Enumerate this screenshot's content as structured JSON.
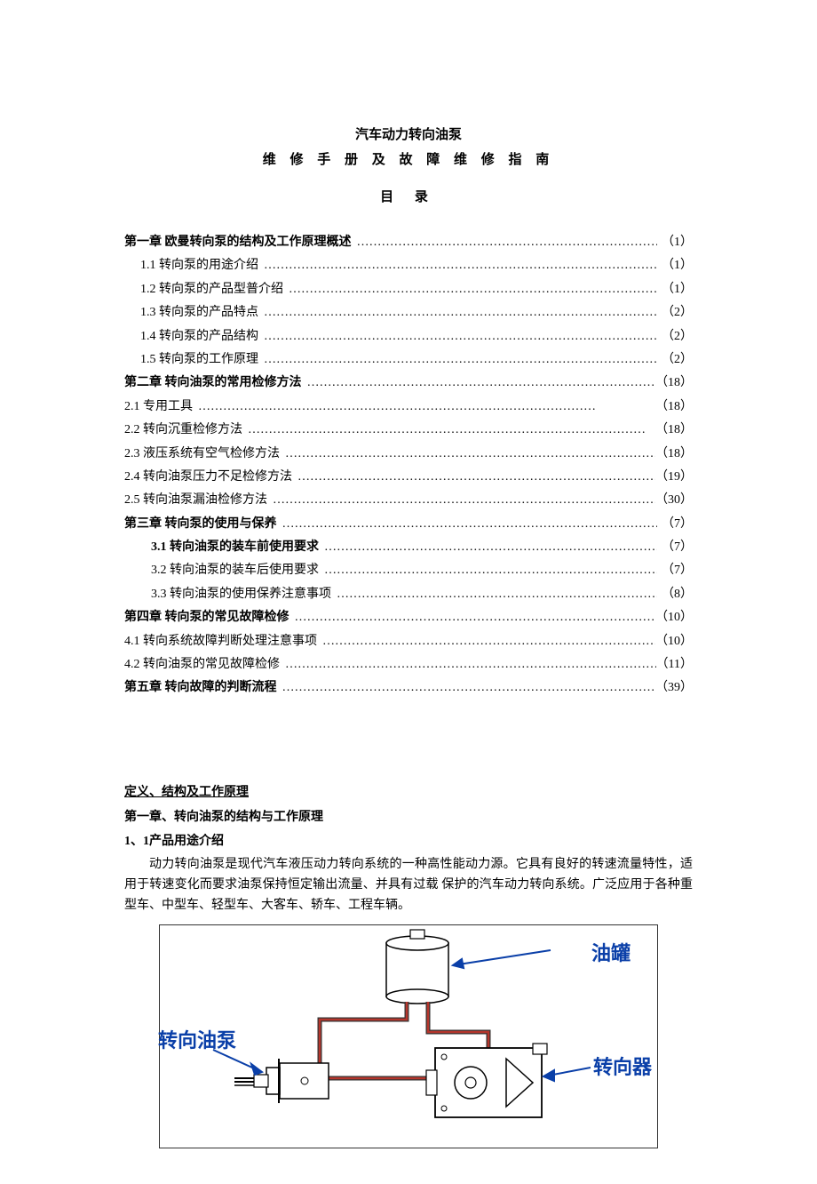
{
  "title": "汽车动力转向油泵",
  "subtitle": "维 修 手 册 及 故 障 维 修 指 南",
  "toc_header": "目  录",
  "toc": [
    {
      "label": "第一章    欧曼转向泵的结构及工作原理概述",
      "page": "（1）",
      "bold": true,
      "indent": 0
    },
    {
      "label": "1.1 转向泵的用途介绍",
      "page": "（1）",
      "bold": false,
      "indent": 1
    },
    {
      "label": "1.2 转向泵的产品型普介绍",
      "page": "（1）",
      "bold": false,
      "indent": 1
    },
    {
      "label": "1.3 转向泵的产品特点",
      "page": "（2）",
      "bold": false,
      "indent": 1
    },
    {
      "label": "1.4 转向泵的产品结构",
      "page": "（2）",
      "bold": false,
      "indent": 1
    },
    {
      "label": "1.5 转向泵的工作原理",
      "page": "（2）",
      "bold": false,
      "indent": 1
    },
    {
      "label": "第二章 转向油泵的常用检修方法",
      "page": "（18）",
      "bold": true,
      "indent": 0
    },
    {
      "label": "2.1 专用工具",
      "page": "（18）",
      "bold": false,
      "indent": 0
    },
    {
      "label": "2.2 转向沉重检修方法",
      "page": "（18）",
      "bold": false,
      "indent": 0
    },
    {
      "label": "2.3 液压系统有空气检修方法",
      "page": "（18）",
      "bold": false,
      "indent": 0
    },
    {
      "label": "2.4 转向油泵压力不足检修方法",
      "page": "（19）",
      "bold": false,
      "indent": 0
    },
    {
      "label": "2.5 转向油泵漏油检修方法",
      "page": "（30）",
      "bold": false,
      "indent": 0
    },
    {
      "label": "第三章   转向泵的使用与保养",
      "page": "（7）",
      "bold": true,
      "indent": 0
    },
    {
      "label": "3.1 转向油泵的装车前使用要求",
      "page": "（7）",
      "bold": true,
      "indent": 2
    },
    {
      "label": "3.2 转向油泵的装车后使用要求",
      "page": "（7）",
      "bold": false,
      "indent": 2
    },
    {
      "label": "3.3 转向油泵的使用保养注意事项",
      "page": "（8）",
      "bold": false,
      "indent": 2
    },
    {
      "label": "第四章   转向泵的常见故障检修",
      "page": "（10）",
      "bold": true,
      "indent": 0
    },
    {
      "label": "4.1 转向系统故障判断处理注意事项",
      "page": "（10）",
      "bold": false,
      "indent": 0
    },
    {
      "label": "4.2 转向油泵的常见故障检修",
      "page": "（11）",
      "bold": false,
      "indent": 0
    },
    {
      "label": "第五章 转向故障的判断流程",
      "page": "（39）",
      "bold": true,
      "indent": 0
    }
  ],
  "section": {
    "def_heading": "定义、结构及工作原理               ",
    "ch1_heading": "第一章、转向油泵的结构与工作原理",
    "sec1_heading": "1、1产品用途介绍",
    "para": "动力转向油泵是现代汽车液压动力转向系统的一种高性能动力源。它具有良好的转速流量特性，适用于转速变化而要求油泵保持恒定输出流量、并具有过载 保护的汽车动力转向系统。广泛应用于各种重型车、中型车、轻型车、大客车、轿车、工程车辆。"
  },
  "diagram": {
    "labels": {
      "tank": "油罐",
      "pump": "转向油泵",
      "gear": "转向器"
    },
    "colors": {
      "label": "#0a3fa8",
      "outline": "#000000",
      "pipe_outer": "#333333",
      "pipe_inner": "#b5362d",
      "fill": "#ffffff",
      "boxbg": "#ffffff",
      "border": "#333333"
    }
  }
}
